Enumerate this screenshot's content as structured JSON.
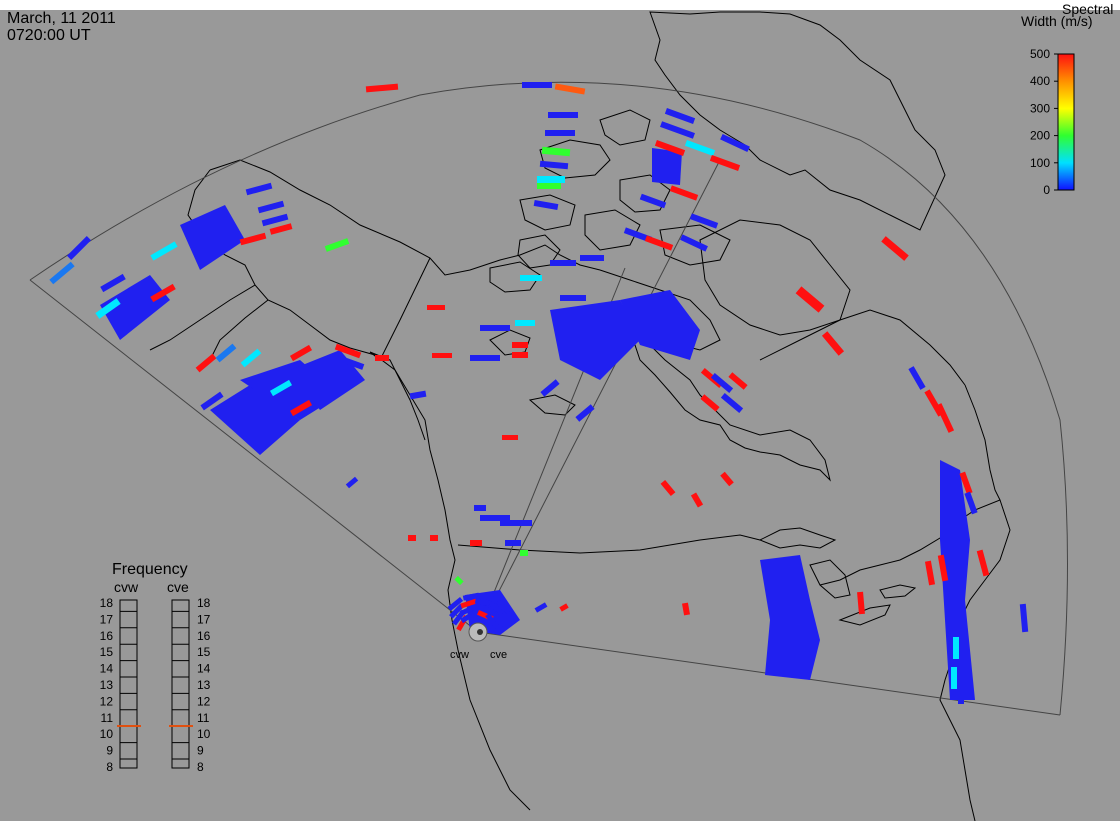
{
  "header": {
    "date": "March, 11 2011",
    "time": "0720:00 UT"
  },
  "colorbar": {
    "title_line1": "Spectral",
    "title_line2": "Width (m/s)",
    "ticks": [
      0,
      100,
      200,
      300,
      400,
      500
    ],
    "tick_labels": [
      "0",
      "100",
      "200",
      "300",
      "400",
      "500"
    ],
    "colors": [
      "#1010ff",
      "#00e0ff",
      "#30ff30",
      "#ffff00",
      "#ff9000",
      "#ff1010"
    ]
  },
  "frequency_panel": {
    "title": "Frequency",
    "left_label": "cvw",
    "right_label": "cve",
    "scale": [
      "18",
      "17",
      "16",
      "15",
      "14",
      "13",
      "12",
      "11",
      "10",
      "9",
      "8"
    ],
    "cvw_frequency_mhz": 10.5,
    "cve_frequency_mhz": 10.5,
    "marker_color": "#e05010"
  },
  "radars": [
    {
      "label": "cvw"
    },
    {
      "label": "cve"
    }
  ],
  "colors": {
    "background": "#999999",
    "coast": "#000000",
    "blue": "#2020f0",
    "red": "#ff1010",
    "cyan": "#00e8ff",
    "green": "#30ff30",
    "azure": "#1a78f0",
    "orange": "#ff5a10"
  }
}
